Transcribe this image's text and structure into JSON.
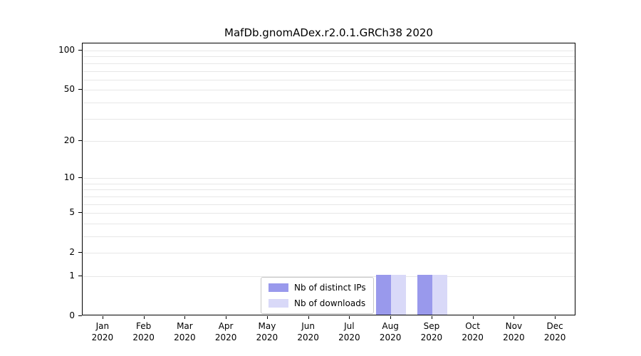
{
  "chart_data": {
    "type": "bar",
    "title": "MafDb.gnomADex.r2.0.1.GRCh38 2020",
    "scale": "log1p",
    "ylim": [
      0,
      113
    ],
    "yticks": [
      0,
      1,
      2,
      5,
      10,
      20,
      50,
      100
    ],
    "gridline_values": [
      1,
      2,
      3,
      4,
      5,
      6,
      7,
      8,
      9,
      10,
      20,
      30,
      40,
      50,
      60,
      70,
      80,
      90,
      100
    ],
    "grid": true,
    "categories": [
      {
        "month": "Jan",
        "year": "2020"
      },
      {
        "month": "Feb",
        "year": "2020"
      },
      {
        "month": "Mar",
        "year": "2020"
      },
      {
        "month": "Apr",
        "year": "2020"
      },
      {
        "month": "May",
        "year": "2020"
      },
      {
        "month": "Jun",
        "year": "2020"
      },
      {
        "month": "Jul",
        "year": "2020"
      },
      {
        "month": "Aug",
        "year": "2020"
      },
      {
        "month": "Sep",
        "year": "2020"
      },
      {
        "month": "Oct",
        "year": "2020"
      },
      {
        "month": "Nov",
        "year": "2020"
      },
      {
        "month": "Dec",
        "year": "2020"
      }
    ],
    "series": [
      {
        "name": "Nb of distinct IPs",
        "color": "#9999ec",
        "values": [
          0,
          0,
          0,
          0,
          0,
          0,
          0,
          1,
          1,
          0,
          0,
          0
        ]
      },
      {
        "name": "Nb of downloads",
        "color": "#d9d9f8",
        "values": [
          0,
          0,
          0,
          0,
          0,
          0,
          0,
          1,
          1,
          0,
          0,
          0
        ]
      }
    ],
    "legend": {
      "position": "bottom-center-inside",
      "items": [
        {
          "label": "Nb of distinct IPs",
          "color": "#9999ec"
        },
        {
          "label": "Nb of downloads",
          "color": "#d9d9f8"
        }
      ]
    }
  }
}
